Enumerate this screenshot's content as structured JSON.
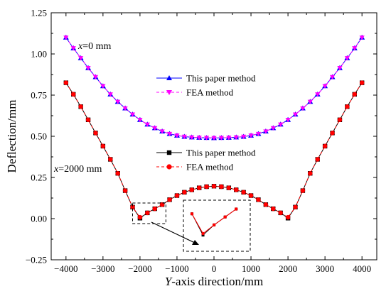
{
  "chart_data": {
    "type": "line",
    "xlabel": {
      "italic": "Y",
      "rest": "-axis direction/mm"
    },
    "ylabel": "Deflection/mm",
    "xlim": [
      -4400,
      4400
    ],
    "ylim": [
      -0.25,
      1.25
    ],
    "xticks": [
      -4000,
      -3000,
      -2000,
      -1000,
      0,
      1000,
      2000,
      3000,
      4000
    ],
    "xtick_labels": [
      "−4000",
      "−3000",
      "−2000",
      "−1000",
      "0",
      "1000",
      "2000",
      "3000",
      "4000"
    ],
    "yticks": [
      -0.25,
      0.0,
      0.25,
      0.5,
      0.75,
      1.0,
      1.25
    ],
    "ytick_labels": [
      "−0.25",
      "0.00",
      "0.25",
      "0.50",
      "0.75",
      "1.00",
      "1.25"
    ],
    "grid": false,
    "x": [
      -4000,
      -3800,
      -3600,
      -3400,
      -3200,
      -3000,
      -2800,
      -2600,
      -2400,
      -2200,
      -2000,
      -1800,
      -1600,
      -1400,
      -1200,
      -1000,
      -800,
      -600,
      -400,
      -200,
      0,
      200,
      400,
      600,
      800,
      1000,
      1200,
      1400,
      1600,
      1800,
      2000,
      2200,
      2400,
      2600,
      2800,
      3000,
      3200,
      3400,
      3600,
      3800,
      4000
    ],
    "groups": [
      {
        "annotation": {
          "italic": "x",
          "rest": "=0 mm"
        },
        "series": [
          {
            "name": "This paper method",
            "color": "#0000ff",
            "marker": "triangle-up",
            "dash": "solid",
            "values": [
              1.1,
              1.035,
              0.975,
              0.915,
              0.86,
              0.805,
              0.755,
              0.71,
              0.67,
              0.633,
              0.6,
              0.572,
              0.55,
              0.53,
              0.515,
              0.505,
              0.498,
              0.494,
              0.492,
              0.491,
              0.49,
              0.491,
              0.492,
              0.494,
              0.498,
              0.505,
              0.515,
              0.53,
              0.55,
              0.572,
              0.6,
              0.633,
              0.67,
              0.71,
              0.755,
              0.805,
              0.86,
              0.915,
              0.975,
              1.035,
              1.1
            ]
          },
          {
            "name": "FEA method",
            "color": "#ff00ff",
            "marker": "triangle-down",
            "dash": "dash",
            "values": [
              1.1,
              1.035,
              0.975,
              0.915,
              0.86,
              0.805,
              0.755,
              0.71,
              0.67,
              0.633,
              0.6,
              0.572,
              0.55,
              0.53,
              0.515,
              0.505,
              0.498,
              0.494,
              0.492,
              0.491,
              0.49,
              0.491,
              0.492,
              0.494,
              0.498,
              0.505,
              0.515,
              0.53,
              0.55,
              0.572,
              0.6,
              0.633,
              0.67,
              0.71,
              0.755,
              0.805,
              0.86,
              0.915,
              0.975,
              1.035,
              1.1
            ]
          }
        ]
      },
      {
        "annotation": {
          "italic": "x",
          "rest": "=2000 mm"
        },
        "series": [
          {
            "name": "This paper method",
            "color": "#000000",
            "marker": "square",
            "dash": "solid",
            "values": [
              0.825,
              0.755,
              0.68,
              0.6,
              0.52,
              0.44,
              0.36,
              0.275,
              0.17,
              0.07,
              0.003,
              0.035,
              0.06,
              0.085,
              0.115,
              0.14,
              0.16,
              0.175,
              0.187,
              0.194,
              0.197,
              0.194,
              0.187,
              0.175,
              0.16,
              0.14,
              0.115,
              0.085,
              0.06,
              0.035,
              0.003,
              0.07,
              0.17,
              0.275,
              0.36,
              0.44,
              0.52,
              0.6,
              0.68,
              0.755,
              0.825
            ]
          },
          {
            "name": "FEA method",
            "color": "#ff0000",
            "marker": "circle",
            "dash": "dash",
            "values": [
              0.825,
              0.755,
              0.68,
              0.6,
              0.52,
              0.44,
              0.36,
              0.275,
              0.17,
              0.07,
              0.008,
              0.035,
              0.06,
              0.085,
              0.115,
              0.14,
              0.16,
              0.175,
              0.187,
              0.194,
              0.197,
              0.194,
              0.187,
              0.175,
              0.16,
              0.14,
              0.115,
              0.085,
              0.06,
              0.035,
              0.008,
              0.07,
              0.17,
              0.275,
              0.36,
              0.44,
              0.52,
              0.6,
              0.68,
              0.755,
              0.825
            ]
          }
        ]
      }
    ],
    "zoom_region": {
      "x": [
        -2200,
        -1300
      ],
      "y": [
        -0.03,
        0.095
      ]
    }
  }
}
